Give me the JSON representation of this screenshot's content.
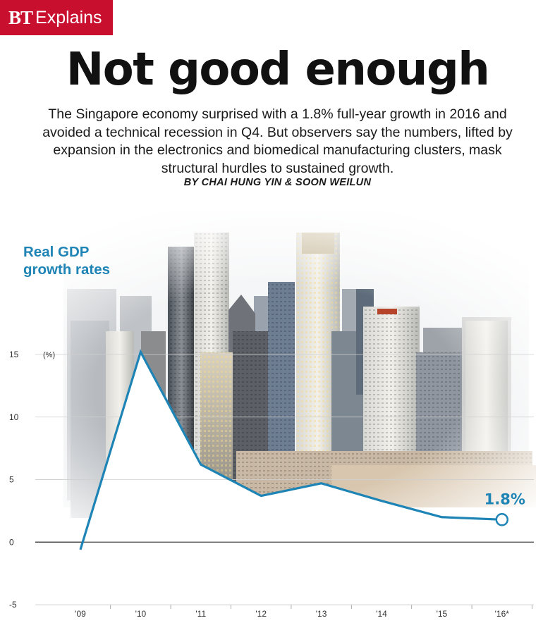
{
  "brand": {
    "bt": "BT",
    "explains": "Explains",
    "color": "#c8102e"
  },
  "headline": "Not good enough",
  "deck": "The Singapore economy surprised with a 1.8% full-year growth in 2016 and avoided a technical recession in Q4. But observers say the numbers, lifted by expansion in the electronics and biomedical manufacturing clusters, mask structural hurdles to sustained growth.",
  "byline": "BY CHAI HUNG YIN & SOON WEILUN",
  "chart_data": {
    "type": "line",
    "title_lines": [
      "Real GDP",
      "growth rates"
    ],
    "unit": "(%)",
    "categories": [
      "'09",
      "'10",
      "'11",
      "'12",
      "'13",
      "'14",
      "'15",
      "'16*"
    ],
    "values": [
      -0.6,
      15.2,
      6.2,
      3.7,
      4.7,
      3.3,
      2.0,
      1.8
    ],
    "last_label": "1.8%",
    "y_ticks": [
      "15",
      "10",
      "5",
      "0",
      "-5"
    ],
    "ylim": [
      -5,
      15
    ],
    "line_color": "#1d84b5",
    "grid": true,
    "background": "Singapore skyline photo"
  }
}
